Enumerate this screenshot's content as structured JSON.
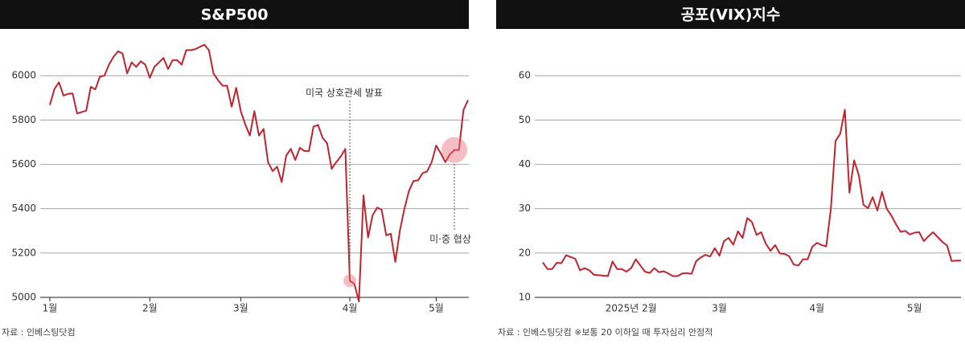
{
  "chart_data": [
    {
      "type": "line",
      "title": "S&P500",
      "source": "자료 : 인베스팅닷컴",
      "categories": [
        "1월",
        null,
        null,
        null,
        null,
        null,
        null,
        null,
        null,
        null,
        null,
        null,
        null,
        null,
        null,
        null,
        null,
        null,
        null,
        null,
        null,
        null,
        "2월",
        null,
        null,
        null,
        null,
        null,
        null,
        null,
        null,
        null,
        null,
        null,
        null,
        null,
        null,
        null,
        null,
        null,
        null,
        null,
        "3월",
        null,
        null,
        null,
        null,
        null,
        null,
        null,
        null,
        null,
        null,
        null,
        null,
        null,
        null,
        null,
        null,
        null,
        null,
        null,
        null,
        null,
        null,
        null,
        "4월",
        null,
        null,
        null,
        null,
        null,
        null,
        null,
        null,
        null,
        null,
        null,
        null,
        null,
        null,
        null,
        null,
        null,
        null,
        "5월",
        null,
        null,
        null,
        null,
        null,
        null,
        null
      ],
      "series": [
        {
          "name": "S&P500",
          "color": "#c0242f",
          "values": [
            5868,
            5940,
            5970,
            5910,
            5918,
            5920,
            5830,
            5836,
            5842,
            5950,
            5938,
            5996,
            6000,
            6050,
            6085,
            6110,
            6100,
            6010,
            6060,
            6040,
            6065,
            6050,
            5990,
            6040,
            6060,
            6080,
            6030,
            6070,
            6070,
            6050,
            6115,
            6115,
            6120,
            6130,
            6140,
            6115,
            6010,
            5980,
            5955,
            5955,
            5860,
            5945,
            5840,
            5780,
            5730,
            5840,
            5730,
            5760,
            5610,
            5570,
            5590,
            5520,
            5640,
            5670,
            5620,
            5675,
            5660,
            5660,
            5770,
            5778,
            5720,
            5695,
            5580,
            5610,
            5635,
            5670,
            5075,
            5060,
            4982,
            5460,
            5270,
            5370,
            5405,
            5395,
            5280,
            5287,
            5160,
            5300,
            5400,
            5480,
            5525,
            5528,
            5560,
            5568,
            5610,
            5685,
            5650,
            5610,
            5645,
            5665,
            5665,
            5845,
            5890
          ]
        }
      ],
      "annotations": [
        "미국 상호관세 발표",
        "미·중 협상"
      ],
      "ylim": [
        5000,
        6200
      ],
      "yticks": [
        5000,
        5200,
        5400,
        5600,
        5800,
        6000
      ],
      "grid": true
    },
    {
      "type": "line",
      "title": "공포(VIX)지수",
      "source": "자료 : 인베스팅닷컴 ※보통 20 이하일 때 투자심리 안정적",
      "categories": [
        null,
        null,
        null,
        null,
        null,
        null,
        null,
        null,
        null,
        null,
        null,
        null,
        null,
        null,
        null,
        null,
        null,
        null,
        null,
        "2025년 2월",
        null,
        null,
        null,
        null,
        null,
        null,
        null,
        null,
        null,
        null,
        null,
        null,
        null,
        null,
        null,
        null,
        null,
        null,
        "3월",
        null,
        null,
        null,
        null,
        null,
        null,
        null,
        null,
        null,
        null,
        null,
        null,
        null,
        null,
        null,
        null,
        null,
        null,
        null,
        null,
        "4월",
        null,
        null,
        null,
        null,
        null,
        null,
        null,
        null,
        null,
        null,
        null,
        null,
        null,
        null,
        null,
        null,
        null,
        null,
        null,
        null,
        "5월",
        null,
        null,
        null,
        null,
        null,
        null,
        null,
        null,
        null,
        null
      ],
      "series": [
        {
          "name": "VIX",
          "color": "#c0242f",
          "values": [
            17.9,
            16.4,
            16.4,
            17.8,
            17.7,
            19.5,
            19.1,
            18.7,
            16.1,
            16.6,
            16.1,
            15.1,
            15.0,
            14.9,
            14.8,
            18.1,
            16.4,
            16.4,
            15.8,
            16.6,
            18.6,
            17.2,
            15.8,
            15.5,
            16.6,
            15.7,
            15.9,
            15.4,
            14.8,
            14.8,
            15.4,
            15.5,
            15.3,
            18.2,
            19.0,
            19.6,
            19.2,
            21.1,
            19.4,
            22.7,
            23.4,
            21.9,
            24.9,
            23.4,
            27.9,
            27.0,
            24.1,
            24.7,
            22.1,
            20.5,
            21.8,
            19.9,
            19.8,
            19.3,
            17.4,
            17.2,
            18.6,
            18.6,
            21.4,
            22.3,
            21.8,
            21.5,
            30.0,
            45.3,
            46.9,
            52.3,
            33.6,
            40.9,
            37.6,
            30.9,
            30.1,
            32.6,
            29.6,
            33.8,
            30.0,
            28.5,
            26.5,
            24.8,
            25.0,
            24.2,
            24.6,
            24.7,
            22.7,
            23.8,
            24.7,
            23.6,
            22.5,
            21.7,
            18.2,
            18.3,
            18.3
          ]
        }
      ],
      "ylim": [
        10,
        70
      ],
      "yticks": [
        10,
        20,
        30,
        40,
        50,
        60
      ],
      "grid": true
    }
  ]
}
